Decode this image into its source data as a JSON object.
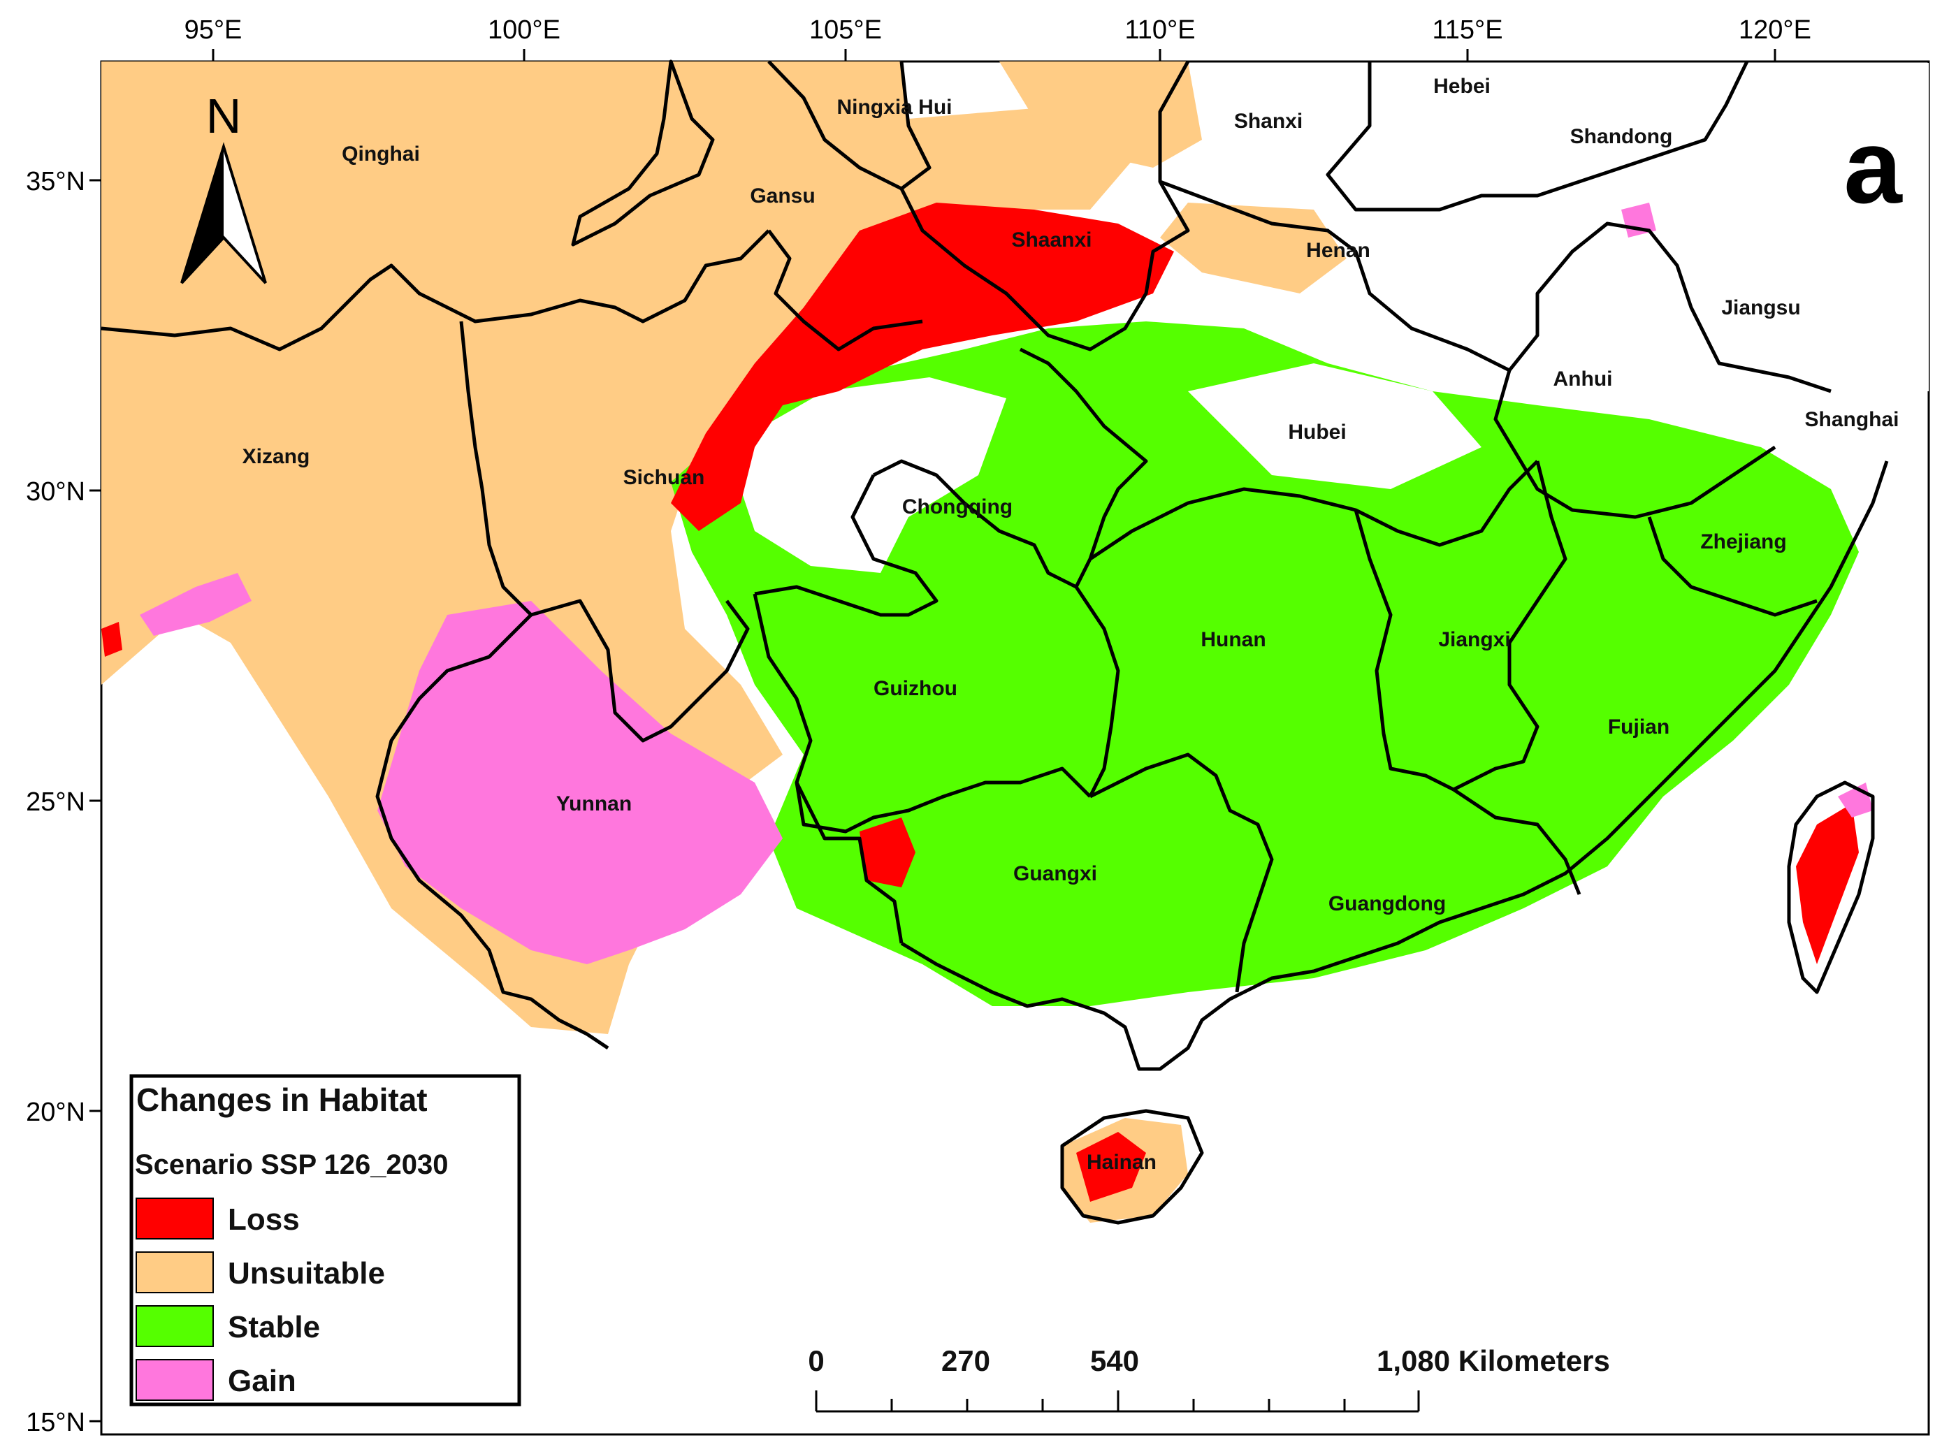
{
  "panel_label": "a",
  "north_arrow_label": "N",
  "x_axis_labels": [
    "95°E",
    "100°E",
    "105°E",
    "110°E",
    "115°E",
    "120°E"
  ],
  "y_axis_labels": [
    "35°N",
    "30°N",
    "25°N",
    "20°N",
    "15°N"
  ],
  "provinces": [
    {
      "key": "qinghai",
      "label": "Qinghai"
    },
    {
      "key": "gansu",
      "label": "Gansu"
    },
    {
      "key": "ningxia",
      "label": "Ningxia Hui"
    },
    {
      "key": "hebei",
      "label": "Hebei"
    },
    {
      "key": "shanxi",
      "label": "Shanxi"
    },
    {
      "key": "shandong",
      "label": "Shandong"
    },
    {
      "key": "shaanxi",
      "label": "Shaanxi"
    },
    {
      "key": "henan",
      "label": "Henan"
    },
    {
      "key": "jiangsu",
      "label": "Jiangsu"
    },
    {
      "key": "anhui",
      "label": "Anhui"
    },
    {
      "key": "shanghai",
      "label": "Shanghai"
    },
    {
      "key": "xizang",
      "label": "Xizang"
    },
    {
      "key": "sichuan",
      "label": "Sichuan"
    },
    {
      "key": "chongqing",
      "label": "Chongqing"
    },
    {
      "key": "hubei",
      "label": "Hubei"
    },
    {
      "key": "zhejiang",
      "label": "Zhejiang"
    },
    {
      "key": "hunan",
      "label": "Hunan"
    },
    {
      "key": "jiangxi",
      "label": "Jiangxi"
    },
    {
      "key": "guizhou",
      "label": "Guizhou"
    },
    {
      "key": "fujian",
      "label": "Fujian"
    },
    {
      "key": "yunnan",
      "label": "Yunnan"
    },
    {
      "key": "guangxi",
      "label": "Guangxi"
    },
    {
      "key": "guangdong",
      "label": "Guangdong"
    },
    {
      "key": "hainan",
      "label": "Hainan"
    }
  ],
  "legend": {
    "title": "Changes in Habitat",
    "scenario": "Scenario SSP 126_2030",
    "items": [
      {
        "label": "Loss",
        "color": "#ff0000"
      },
      {
        "label": "Unsuitable",
        "color": "#ffcc85"
      },
      {
        "label": "Stable",
        "color": "#55ff00"
      },
      {
        "label": "Gain",
        "color": "#ff77dd"
      }
    ]
  },
  "scale_bar": {
    "labels": [
      "0",
      "270",
      "540",
      "1,080 Kilometers"
    ]
  },
  "colors": {
    "boundary": "#000000",
    "background": "#ffffff"
  }
}
